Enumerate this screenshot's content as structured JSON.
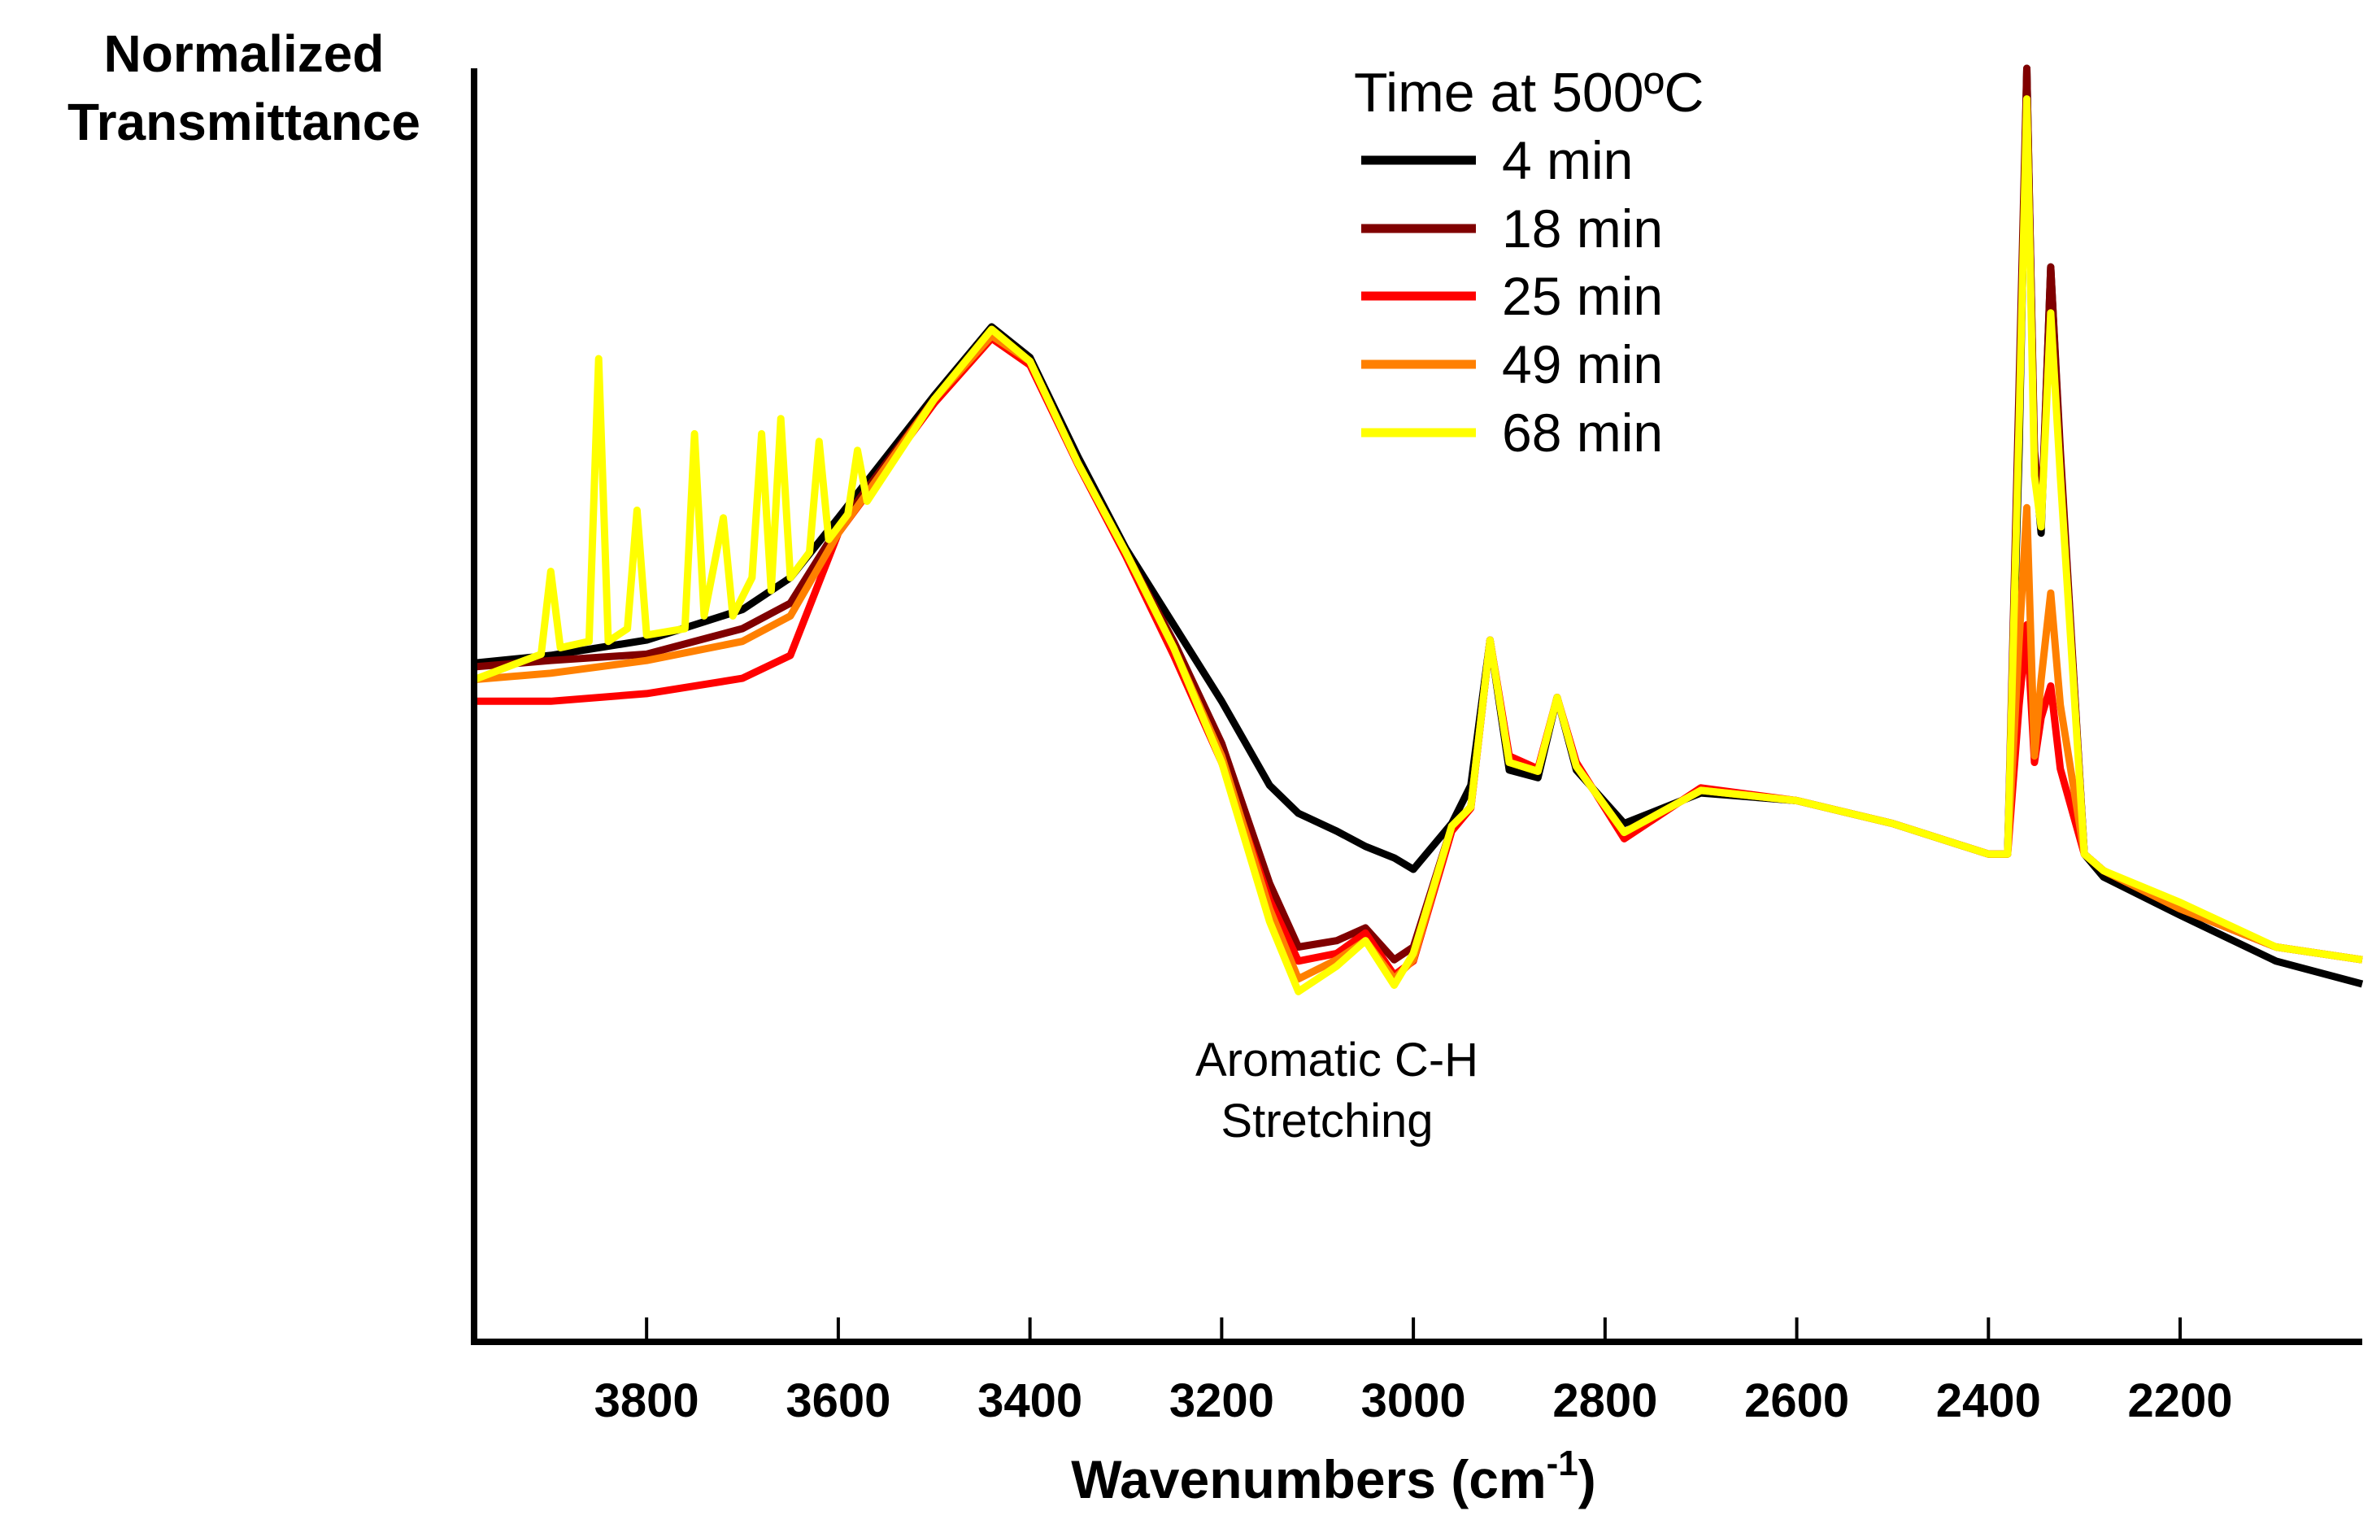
{
  "chart_data": {
    "type": "line",
    "title": "",
    "xlabel_main": "Wavenumbers (cm",
    "xlabel_sup": "-1",
    "xlabel_close": ")",
    "ylabel_lines": [
      "Normalized",
      "Transmittance"
    ],
    "xlim": [
      3980,
      2010
    ],
    "ylim": [
      0,
      100
    ],
    "x_reversed": true,
    "grid": false,
    "xticks": [
      3800,
      3600,
      3400,
      3200,
      3000,
      2800,
      2600,
      2400,
      2200
    ],
    "legend": {
      "title": "Time at 500ºC",
      "placement": "top-center"
    },
    "annotation": {
      "lines": [
        "Aromatic C-H",
        "Stretching"
      ],
      "x": 3080,
      "y": 24
    },
    "series": [
      {
        "name": "4 min",
        "color": "#000000",
        "x": [
          3980,
          3900,
          3800,
          3700,
          3650,
          3600,
          3500,
          3440,
          3400,
          3350,
          3300,
          3250,
          3200,
          3150,
          3120,
          3080,
          3050,
          3020,
          3000,
          2960,
          2940,
          2920,
          2900,
          2870,
          2850,
          2830,
          2780,
          2700,
          2600,
          2500,
          2400,
          2380,
          2368,
          2360,
          2352,
          2345,
          2335,
          2325,
          2300,
          2280,
          2200,
          2100,
          2010
        ],
        "y": [
          53.3,
          53.9,
          55.1,
          57.5,
          60,
          64.7,
          74.3,
          79.7,
          77.3,
          69.5,
          62.3,
          56.3,
          50.3,
          43.7,
          41.5,
          40.1,
          38.9,
          38,
          37.1,
          40.7,
          43.7,
          55.1,
          44.9,
          44.3,
          50.6,
          44.9,
          40.7,
          43.1,
          42.5,
          40.7,
          38.3,
          38.3,
          70,
          100,
          69.5,
          63.5,
          84.4,
          69.5,
          38.3,
          36.5,
          33.5,
          29.9,
          28.1
        ]
      },
      {
        "name": "18 min",
        "color": "#800000",
        "x": [
          3980,
          3900,
          3800,
          3700,
          3650,
          3600,
          3500,
          3440,
          3400,
          3350,
          3300,
          3250,
          3200,
          3150,
          3120,
          3080,
          3050,
          3020,
          3000,
          2960,
          2940,
          2920,
          2900,
          2870,
          2850,
          2830,
          2780,
          2700,
          2600,
          2500,
          2400,
          2380,
          2368,
          2360,
          2352,
          2345,
          2335,
          2325,
          2300,
          2280,
          2200,
          2100,
          2010
        ],
        "y": [
          53,
          53.5,
          54,
          56,
          58,
          64,
          74,
          79.5,
          77,
          69,
          62,
          55,
          47,
          36,
          31,
          31.5,
          32.5,
          30,
          31,
          40.5,
          42,
          55.1,
          45.5,
          44.8,
          50.6,
          45.2,
          40,
          43.3,
          42.5,
          40.7,
          38.3,
          38.3,
          75,
          100,
          70,
          64,
          84.4,
          70,
          38.3,
          37,
          34,
          31,
          30
        ]
      },
      {
        "name": "25 min",
        "color": "#ff0000",
        "x": [
          3980,
          3900,
          3800,
          3700,
          3650,
          3600,
          3500,
          3440,
          3400,
          3350,
          3300,
          3250,
          3200,
          3150,
          3120,
          3080,
          3050,
          3020,
          3000,
          2960,
          2940,
          2920,
          2900,
          2870,
          2850,
          2830,
          2780,
          2700,
          2600,
          2500,
          2400,
          2380,
          2368,
          2360,
          2352,
          2345,
          2335,
          2325,
          2300,
          2280,
          2200,
          2100,
          2010
        ],
        "y": [
          50.3,
          50.3,
          50.9,
          52.1,
          53.9,
          63.5,
          73.7,
          78.8,
          76.7,
          68.9,
          61.7,
          53.9,
          45.5,
          34.7,
          29.9,
          30.5,
          32.1,
          28.8,
          29.9,
          40.1,
          41.9,
          55.1,
          46,
          45,
          50.6,
          45.5,
          39.5,
          43.5,
          42.5,
          40.7,
          38.3,
          38.3,
          50,
          56.3,
          45.5,
          49,
          51.5,
          45,
          38.3,
          37,
          34,
          31,
          30
        ]
      },
      {
        "name": "49 min",
        "color": "#ff8000",
        "x": [
          3980,
          3900,
          3800,
          3700,
          3650,
          3600,
          3500,
          3440,
          3400,
          3350,
          3300,
          3250,
          3200,
          3150,
          3120,
          3080,
          3050,
          3020,
          3000,
          2960,
          2940,
          2920,
          2900,
          2870,
          2850,
          2830,
          2780,
          2700,
          2600,
          2500,
          2400,
          2380,
          2368,
          2360,
          2352,
          2345,
          2335,
          2325,
          2300,
          2280,
          2200,
          2100,
          2010
        ],
        "y": [
          52,
          52.5,
          53.5,
          55,
          57,
          63.5,
          74,
          79,
          77,
          69,
          62,
          54.5,
          46,
          34,
          28.5,
          30,
          31.5,
          28.5,
          30,
          40.5,
          42,
          55.1,
          45.5,
          44.8,
          50.6,
          45.2,
          40,
          43.3,
          42.5,
          40.7,
          38.3,
          38.3,
          55,
          65.5,
          46,
          52,
          58.8,
          50,
          38.3,
          37,
          34,
          31,
          30
        ]
      },
      {
        "name": "68 min",
        "color": "#ffff00",
        "x": [
          3980,
          3910,
          3900,
          3890,
          3860,
          3850,
          3840,
          3820,
          3810,
          3800,
          3760,
          3750,
          3740,
          3720,
          3710,
          3690,
          3680,
          3670,
          3660,
          3650,
          3630,
          3620,
          3610,
          3590,
          3580,
          3570,
          3500,
          3440,
          3400,
          3350,
          3300,
          3250,
          3200,
          3150,
          3120,
          3080,
          3050,
          3020,
          3000,
          2960,
          2940,
          2920,
          2900,
          2870,
          2850,
          2830,
          2780,
          2700,
          2600,
          2500,
          2400,
          2380,
          2368,
          2360,
          2352,
          2345,
          2335,
          2325,
          2300,
          2280,
          2200,
          2100,
          2010
        ],
        "y": [
          52,
          54,
          60.5,
          54.5,
          55,
          77.2,
          55,
          56,
          65.3,
          55.5,
          56,
          71.3,
          57,
          64.7,
          57,
          60,
          71.3,
          59,
          72.5,
          60,
          62,
          70.7,
          63,
          65,
          70,
          66,
          74,
          79.5,
          77,
          69,
          62,
          54.5,
          45.5,
          33,
          27.5,
          29.5,
          31.5,
          28,
          30.5,
          40.5,
          42,
          55.1,
          45.5,
          44.8,
          50.6,
          45.2,
          40,
          43.3,
          42.5,
          40.7,
          38.3,
          38.3,
          72,
          97.6,
          68,
          64,
          80.8,
          68,
          38.3,
          37,
          34.5,
          31,
          30
        ]
      }
    ]
  }
}
